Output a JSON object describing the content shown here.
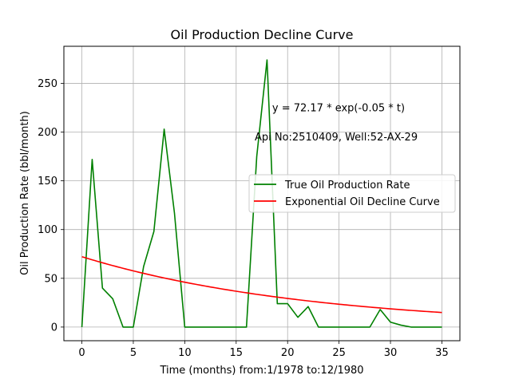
{
  "chart_data": {
    "type": "line",
    "title": "Oil Production Decline Curve",
    "xlabel": "Time (months) from:1/1978 to:12/1980",
    "ylabel": "Oil Production Rate (bbl/month)",
    "xlim": [
      -1.75,
      36.75
    ],
    "ylim": [
      -14,
      288
    ],
    "xticks": [
      0,
      5,
      10,
      15,
      20,
      25,
      30,
      35
    ],
    "yticks": [
      0,
      50,
      100,
      150,
      200,
      250
    ],
    "grid": true,
    "legend_position": "center-right",
    "annotations": [
      {
        "text": "y = 72.17 * exp(-0.05 * t)",
        "x": 18.5,
        "y": 225
      },
      {
        "text": "Api No:2510409, Well:52-AX-29",
        "x": 16.8,
        "y": 195
      }
    ],
    "x": [
      0,
      1,
      2,
      3,
      4,
      5,
      6,
      7,
      8,
      9,
      10,
      11,
      12,
      13,
      14,
      15,
      16,
      17,
      18,
      19,
      20,
      21,
      22,
      23,
      24,
      25,
      26,
      27,
      28,
      29,
      30,
      31,
      32,
      33,
      34,
      35
    ],
    "series": [
      {
        "name": "True Oil Production Rate",
        "color": "#008000",
        "values": [
          0,
          172,
          40,
          29,
          0,
          0,
          62,
          98,
          203,
          117,
          0,
          0,
          0,
          0,
          0,
          0,
          0,
          175,
          274,
          24,
          24,
          10,
          21,
          0,
          0,
          0,
          0,
          0,
          0,
          18,
          5,
          2,
          0,
          0,
          0,
          0
        ]
      },
      {
        "name": "Exponential Oil Decline Curve",
        "color": "#ff0000",
        "formula": {
          "a": 72.17,
          "b": 0.045
        }
      }
    ]
  }
}
